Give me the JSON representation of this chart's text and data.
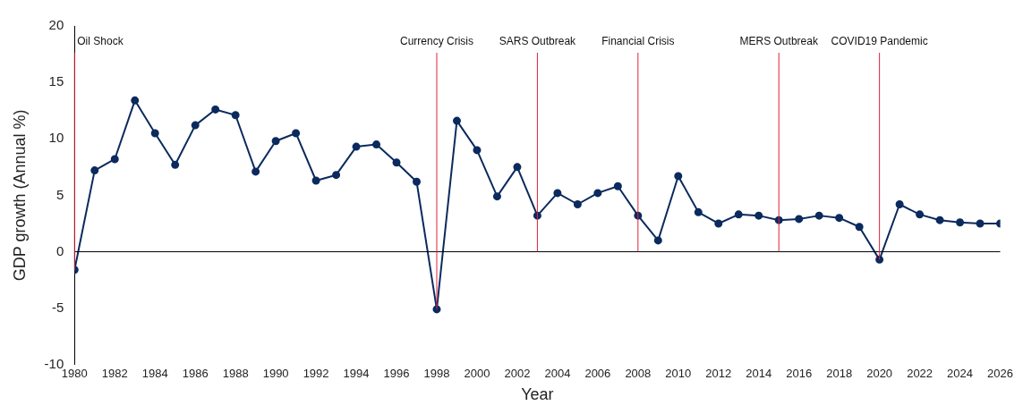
{
  "chart_data": {
    "type": "line",
    "xlabel": "Year",
    "ylabel": "GDP growth (Annual %)",
    "x": [
      1980,
      1981,
      1982,
      1983,
      1984,
      1985,
      1986,
      1987,
      1988,
      1989,
      1990,
      1991,
      1992,
      1993,
      1994,
      1995,
      1996,
      1997,
      1998,
      1999,
      2000,
      2001,
      2002,
      2003,
      2004,
      2005,
      2006,
      2007,
      2008,
      2009,
      2010,
      2011,
      2012,
      2013,
      2014,
      2015,
      2016,
      2017,
      2018,
      2019,
      2020,
      2021,
      2022,
      2023,
      2024,
      2025,
      2026
    ],
    "series": [
      {
        "color": "#0b2a5e",
        "values": [
          -1.6,
          7.2,
          8.2,
          13.4,
          10.5,
          7.7,
          11.2,
          12.6,
          12.1,
          7.1,
          9.8,
          10.5,
          6.3,
          6.8,
          9.3,
          9.5,
          7.9,
          6.2,
          -5.1,
          11.6,
          9.0,
          4.9,
          7.5,
          3.2,
          5.2,
          4.2,
          5.2,
          5.8,
          3.2,
          1.0,
          6.7,
          3.5,
          2.5,
          3.3,
          3.2,
          2.8,
          2.9,
          3.2,
          3.0,
          2.2,
          -0.7,
          4.2,
          3.3,
          2.8,
          2.6,
          2.5,
          2.5
        ]
      }
    ],
    "xlim": [
      1980,
      2026
    ],
    "xticks": [
      1980,
      1982,
      1984,
      1986,
      1988,
      1990,
      1992,
      1994,
      1996,
      1998,
      2000,
      2002,
      2004,
      2006,
      2008,
      2010,
      2012,
      2014,
      2016,
      2018,
      2020,
      2022,
      2024,
      2026
    ],
    "ylim": [
      -10,
      20
    ],
    "yticks": [
      -10,
      -5,
      0,
      5,
      10,
      15,
      20
    ],
    "grid": false,
    "legend": false,
    "marker": "circle",
    "line_style": "solid",
    "ref_lines": [
      {
        "axis": "x",
        "value": 1980,
        "label": "Oil Shock",
        "color": "#e0223b"
      },
      {
        "axis": "x",
        "value": 1998,
        "label": "Currency Crisis",
        "color": "#e0223b"
      },
      {
        "axis": "x",
        "value": 2003,
        "label": "SARS Outbreak",
        "color": "#e0223b"
      },
      {
        "axis": "x",
        "value": 2008,
        "label": "Financial Crisis",
        "color": "#e0223b"
      },
      {
        "axis": "x",
        "value": 2015,
        "label": "MERS Outbreak",
        "color": "#e0223b"
      },
      {
        "axis": "x",
        "value": 2020,
        "label": "COVID19 Pandemic",
        "color": "#e0223b"
      }
    ]
  }
}
